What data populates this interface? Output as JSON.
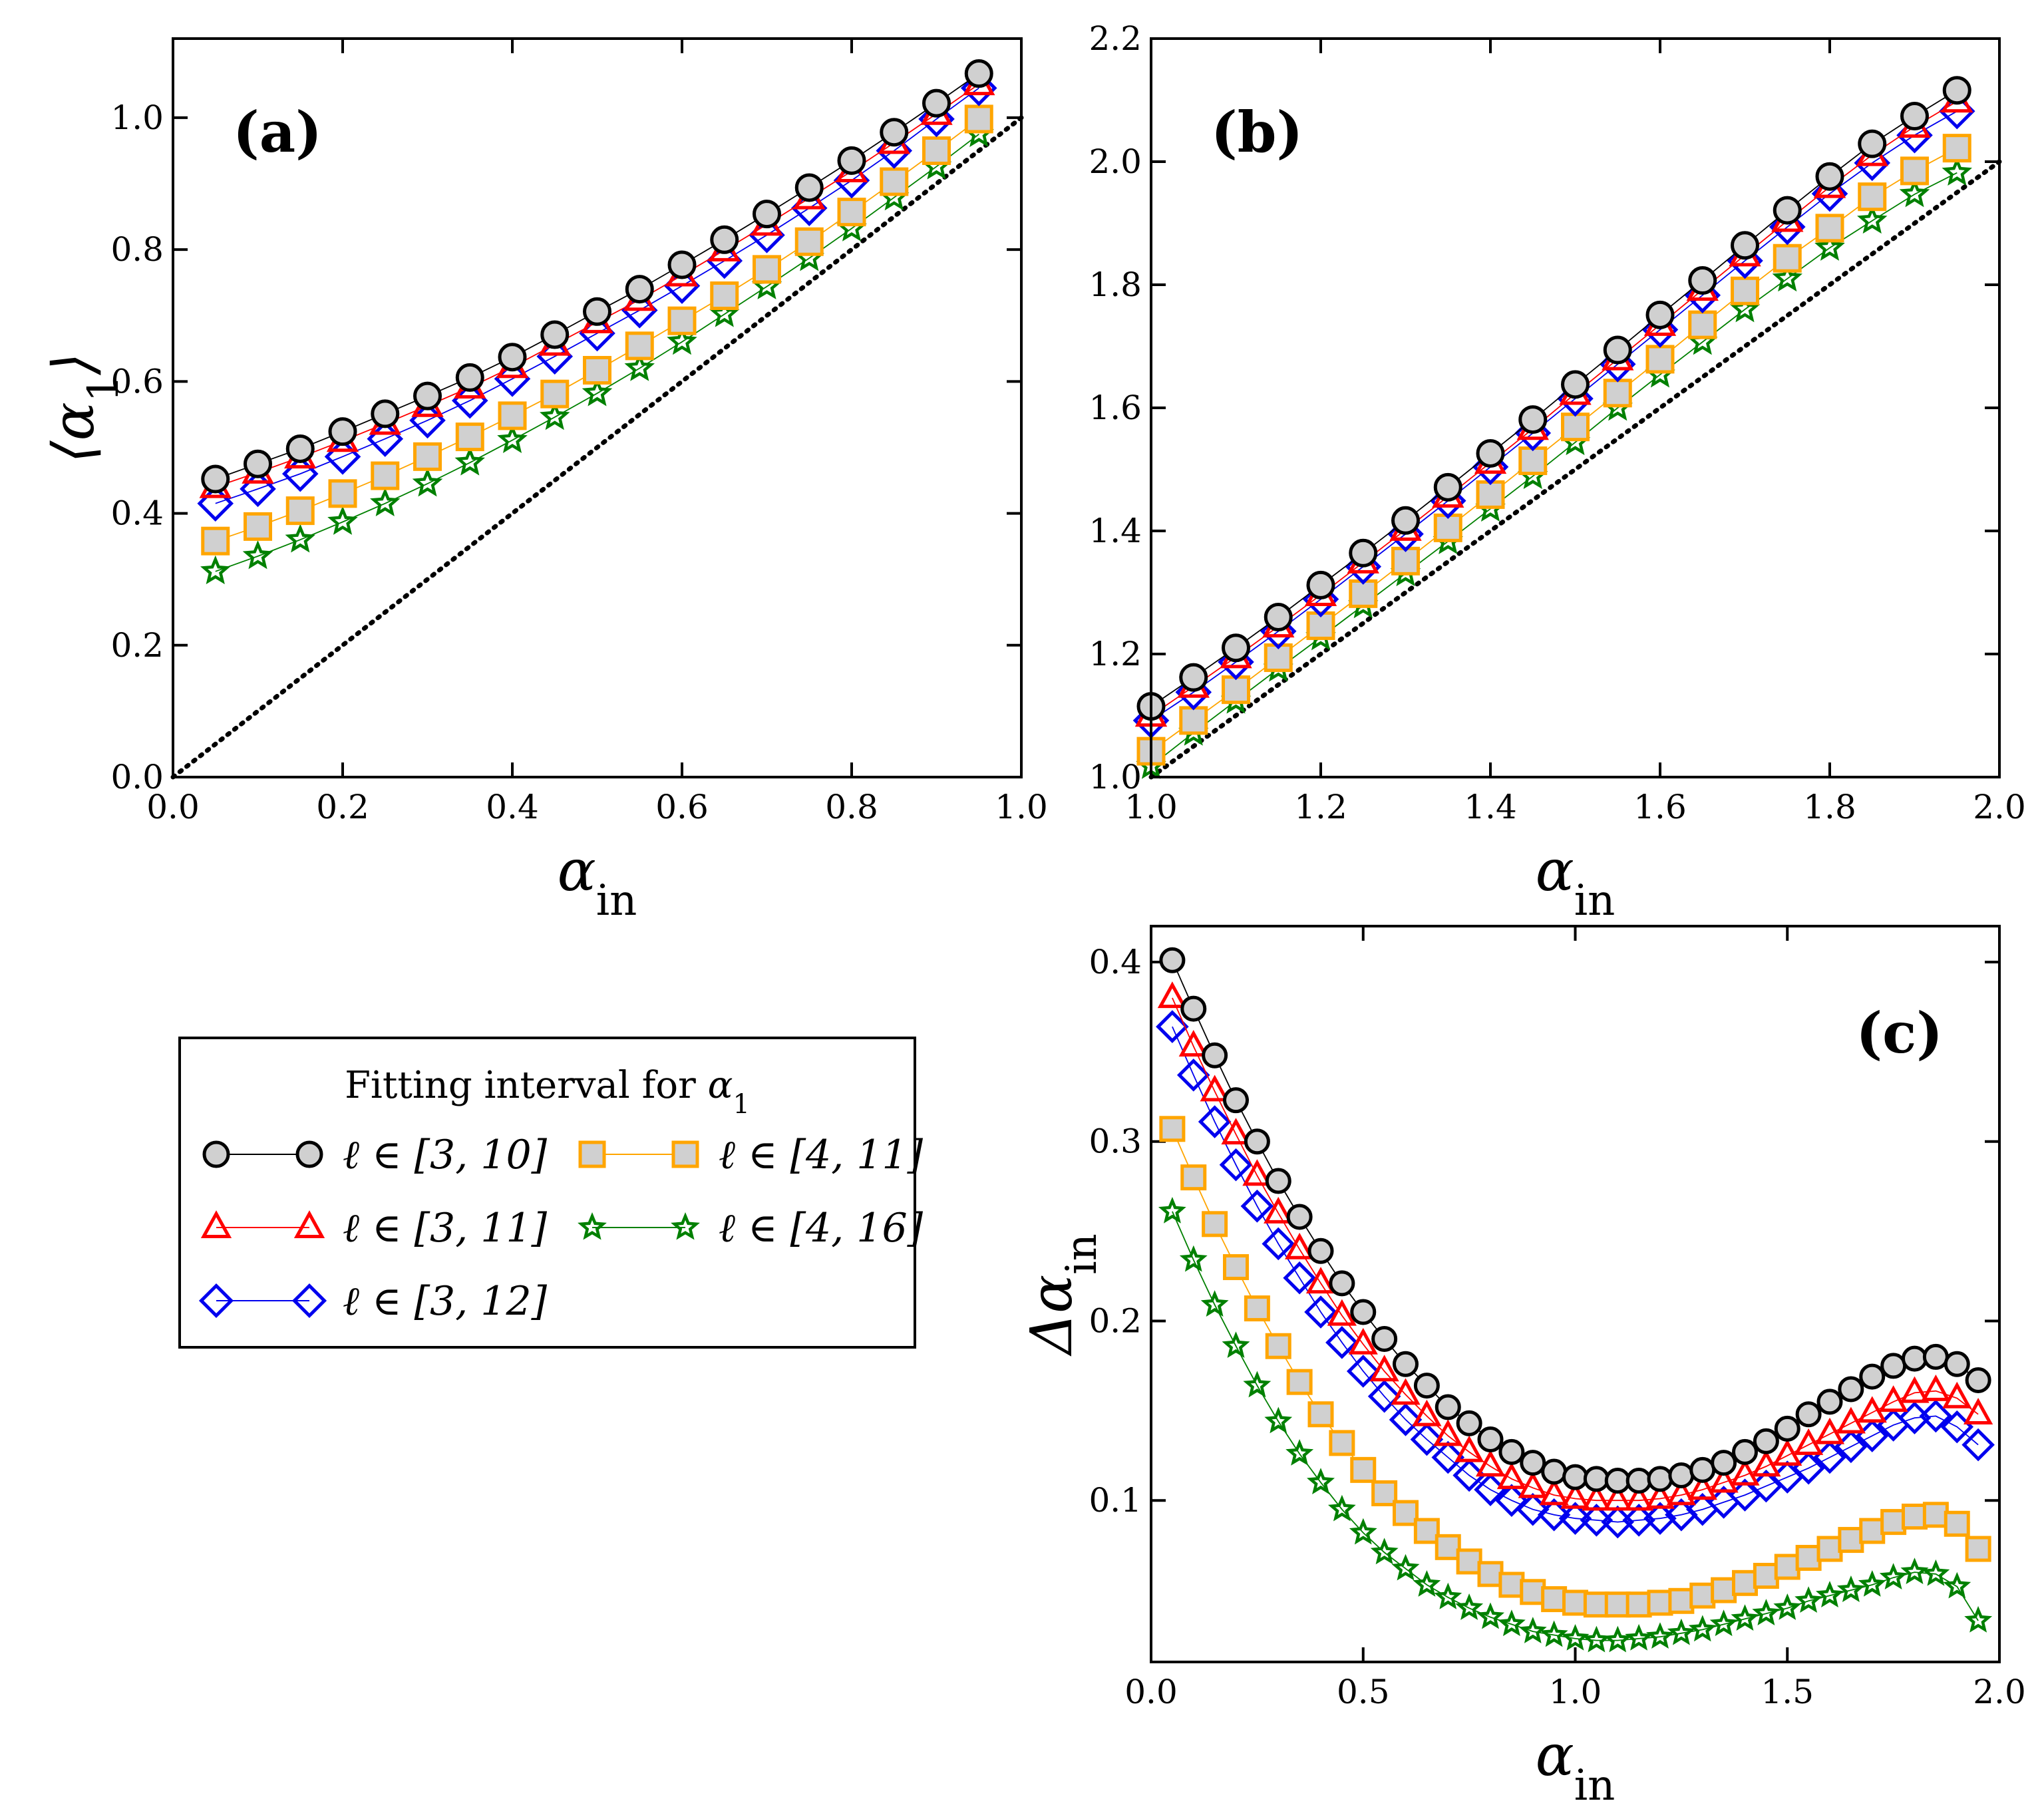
{
  "chart_data": [
    {
      "id": "a",
      "type": "line",
      "panel_label": "(a)",
      "xlabel": "α",
      "xlabel_sub": "in",
      "ylabel": "⟨α",
      "ylabel_sub": "1",
      "ylabel_tail": "⟩",
      "xlim": [
        0.0,
        1.0
      ],
      "ylim": [
        0.0,
        1.12
      ],
      "xticks": [
        "0.0",
        "0.2",
        "0.4",
        "0.6",
        "0.8",
        "1.0"
      ],
      "yticks": [
        "0.0",
        "0.2",
        "0.4",
        "0.6",
        "0.8",
        "1.0"
      ],
      "reference_line": {
        "style": "dotted",
        "x": [
          0.0,
          1.0
        ],
        "y": [
          0.0,
          1.0
        ]
      },
      "x": [
        0.05,
        0.1,
        0.15,
        0.2,
        0.25,
        0.3,
        0.35,
        0.4,
        0.45,
        0.5,
        0.55,
        0.6,
        0.65,
        0.7,
        0.75,
        0.8,
        0.85,
        0.9,
        0.95
      ],
      "series": [
        {
          "name": "ℓ ∈ [3, 10]",
          "values": [
            0.452,
            0.475,
            0.498,
            0.524,
            0.551,
            0.578,
            0.606,
            0.637,
            0.671,
            0.706,
            0.74,
            0.777,
            0.815,
            0.854,
            0.894,
            0.935,
            0.978,
            1.022,
            1.067
          ]
        },
        {
          "name": "ℓ ∈ [3, 11]",
          "values": [
            0.44,
            0.462,
            0.485,
            0.51,
            0.536,
            0.563,
            0.591,
            0.622,
            0.656,
            0.69,
            0.724,
            0.761,
            0.799,
            0.838,
            0.878,
            0.919,
            0.962,
            1.006,
            1.051
          ]
        },
        {
          "name": "ℓ ∈ [3, 12]",
          "values": [
            0.415,
            0.437,
            0.46,
            0.486,
            0.513,
            0.541,
            0.571,
            0.604,
            0.638,
            0.673,
            0.708,
            0.745,
            0.783,
            0.822,
            0.863,
            0.905,
            0.95,
            0.998,
            1.045
          ]
        },
        {
          "name": "ℓ ∈ [4, 11]",
          "values": [
            0.358,
            0.38,
            0.404,
            0.43,
            0.457,
            0.486,
            0.516,
            0.548,
            0.581,
            0.617,
            0.654,
            0.692,
            0.73,
            0.77,
            0.812,
            0.857,
            0.903,
            0.95,
            0.998
          ]
        },
        {
          "name": "ℓ ∈ [4, 16]",
          "values": [
            0.312,
            0.335,
            0.36,
            0.387,
            0.415,
            0.445,
            0.477,
            0.511,
            0.546,
            0.582,
            0.62,
            0.66,
            0.702,
            0.744,
            0.787,
            0.832,
            0.879,
            0.926,
            0.975
          ]
        }
      ]
    },
    {
      "id": "b",
      "type": "line",
      "panel_label": "(b)",
      "xlabel": "α",
      "xlabel_sub": "in",
      "xlim": [
        1.0,
        2.0
      ],
      "ylim": [
        1.0,
        2.2
      ],
      "xticks": [
        "1.0",
        "1.2",
        "1.4",
        "1.6",
        "1.8",
        "2.0"
      ],
      "yticks": [
        "1.0",
        "1.2",
        "1.4",
        "1.6",
        "1.8",
        "2.0",
        "2.2"
      ],
      "reference_line": {
        "style": "dotted",
        "x": [
          1.0,
          2.0
        ],
        "y": [
          1.0,
          2.0
        ]
      },
      "x": [
        1.0,
        1.05,
        1.1,
        1.15,
        1.2,
        1.25,
        1.3,
        1.35,
        1.4,
        1.45,
        1.5,
        1.55,
        1.6,
        1.65,
        1.7,
        1.75,
        1.8,
        1.85,
        1.9,
        1.95
      ],
      "series": [
        {
          "name": "ℓ ∈ [3, 10]",
          "values": [
            1.115,
            1.162,
            1.21,
            1.26,
            1.312,
            1.364,
            1.417,
            1.471,
            1.526,
            1.581,
            1.638,
            1.694,
            1.751,
            1.807,
            1.864,
            1.921,
            1.976,
            2.029,
            2.074,
            2.116
          ]
        },
        {
          "name": "ℓ ∈ [3, 11]",
          "values": [
            1.1,
            1.147,
            1.195,
            1.245,
            1.296,
            1.349,
            1.402,
            1.456,
            1.511,
            1.566,
            1.623,
            1.679,
            1.735,
            1.792,
            1.848,
            1.904,
            1.959,
            2.011,
            2.057,
            2.098
          ]
        },
        {
          "name": "ℓ ∈ [3, 12]",
          "values": [
            1.092,
            1.138,
            1.187,
            1.237,
            1.289,
            1.342,
            1.395,
            1.449,
            1.504,
            1.559,
            1.615,
            1.671,
            1.727,
            1.783,
            1.839,
            1.894,
            1.948,
            1.998,
            2.043,
            2.082
          ]
        },
        {
          "name": "ℓ ∈ [4, 11]",
          "values": [
            1.042,
            1.092,
            1.142,
            1.194,
            1.246,
            1.298,
            1.351,
            1.405,
            1.459,
            1.514,
            1.569,
            1.624,
            1.679,
            1.735,
            1.79,
            1.843,
            1.892,
            1.943,
            1.985,
            2.022
          ]
        },
        {
          "name": "ℓ ∈ [4, 16]",
          "values": [
            1.018,
            1.072,
            1.124,
            1.176,
            1.227,
            1.279,
            1.331,
            1.383,
            1.436,
            1.489,
            1.544,
            1.6,
            1.654,
            1.707,
            1.76,
            1.81,
            1.86,
            1.904,
            1.947,
            1.982
          ]
        }
      ]
    },
    {
      "id": "c",
      "type": "line",
      "panel_label": "(c)",
      "xlabel": "α",
      "xlabel_sub": "in",
      "ylabel": "Δα",
      "ylabel_sub": "in",
      "xlim": [
        0.0,
        2.0
      ],
      "ylim": [
        0.01,
        0.42
      ],
      "xticks": [
        "0.0",
        "0.5",
        "1.0",
        "1.5",
        "2.0"
      ],
      "yticks": [
        "0.1",
        "0.2",
        "0.3",
        "0.4"
      ],
      "x": [
        0.05,
        0.1,
        0.15,
        0.2,
        0.25,
        0.3,
        0.35,
        0.4,
        0.45,
        0.5,
        0.55,
        0.6,
        0.65,
        0.7,
        0.75,
        0.8,
        0.85,
        0.9,
        0.95,
        1.0,
        1.05,
        1.1,
        1.15,
        1.2,
        1.25,
        1.3,
        1.35,
        1.4,
        1.45,
        1.5,
        1.55,
        1.6,
        1.65,
        1.7,
        1.75,
        1.8,
        1.85,
        1.9,
        1.95
      ],
      "series": [
        {
          "name": "ℓ ∈ [3, 10]",
          "values": [
            0.401,
            0.374,
            0.348,
            0.323,
            0.3,
            0.278,
            0.258,
            0.239,
            0.221,
            0.205,
            0.19,
            0.176,
            0.164,
            0.152,
            0.143,
            0.134,
            0.127,
            0.121,
            0.116,
            0.113,
            0.112,
            0.111,
            0.111,
            0.112,
            0.114,
            0.117,
            0.121,
            0.127,
            0.133,
            0.14,
            0.148,
            0.155,
            0.162,
            0.169,
            0.175,
            0.179,
            0.18,
            0.176,
            0.167
          ]
        },
        {
          "name": "ℓ ∈ [3, 11]",
          "values": [
            0.38,
            0.353,
            0.328,
            0.304,
            0.281,
            0.26,
            0.24,
            0.221,
            0.203,
            0.187,
            0.172,
            0.159,
            0.147,
            0.136,
            0.127,
            0.119,
            0.112,
            0.107,
            0.103,
            0.101,
            0.1,
            0.1,
            0.1,
            0.101,
            0.103,
            0.106,
            0.11,
            0.114,
            0.119,
            0.125,
            0.131,
            0.137,
            0.143,
            0.149,
            0.155,
            0.16,
            0.161,
            0.157,
            0.148
          ]
        },
        {
          "name": "ℓ ∈ [3, 12]",
          "values": [
            0.364,
            0.337,
            0.311,
            0.287,
            0.264,
            0.243,
            0.224,
            0.205,
            0.188,
            0.172,
            0.158,
            0.145,
            0.134,
            0.124,
            0.114,
            0.106,
            0.1,
            0.095,
            0.092,
            0.09,
            0.089,
            0.088,
            0.089,
            0.09,
            0.092,
            0.095,
            0.099,
            0.103,
            0.108,
            0.113,
            0.118,
            0.124,
            0.13,
            0.136,
            0.142,
            0.146,
            0.147,
            0.141,
            0.131
          ]
        },
        {
          "name": "ℓ ∈ [4, 11]",
          "values": [
            0.307,
            0.28,
            0.254,
            0.23,
            0.207,
            0.186,
            0.166,
            0.148,
            0.132,
            0.117,
            0.104,
            0.093,
            0.083,
            0.074,
            0.066,
            0.059,
            0.053,
            0.049,
            0.045,
            0.043,
            0.042,
            0.042,
            0.042,
            0.043,
            0.044,
            0.047,
            0.05,
            0.054,
            0.058,
            0.063,
            0.068,
            0.073,
            0.078,
            0.083,
            0.088,
            0.091,
            0.092,
            0.087,
            0.073
          ]
        },
        {
          "name": "ℓ ∈ [4, 16]",
          "values": [
            0.261,
            0.234,
            0.209,
            0.186,
            0.164,
            0.144,
            0.126,
            0.11,
            0.095,
            0.082,
            0.071,
            0.062,
            0.053,
            0.046,
            0.04,
            0.035,
            0.031,
            0.027,
            0.025,
            0.023,
            0.022,
            0.022,
            0.023,
            0.024,
            0.026,
            0.028,
            0.031,
            0.034,
            0.037,
            0.04,
            0.044,
            0.047,
            0.05,
            0.053,
            0.057,
            0.06,
            0.059,
            0.052,
            0.033
          ]
        }
      ]
    }
  ],
  "legend": {
    "title_prefix": "Fitting interval for ",
    "title_symbol": "α",
    "title_sub": "1",
    "entries": [
      {
        "label": "ℓ ∈ [3, 10]",
        "marker": "circle"
      },
      {
        "label": "ℓ ∈ [3, 11]",
        "marker": "triangle"
      },
      {
        "label": "ℓ ∈ [3, 12]",
        "marker": "diamond"
      },
      {
        "label": "ℓ ∈ [4, 11]",
        "marker": "square"
      },
      {
        "label": "ℓ ∈ [4, 16]",
        "marker": "star"
      }
    ]
  },
  "styles": [
    {
      "marker": "circle",
      "face": "#d0d0d0",
      "edge": "#000000",
      "line": "#000000"
    },
    {
      "marker": "triangle",
      "face": "none",
      "edge": "#ff0000",
      "line": "#ff0000"
    },
    {
      "marker": "diamond",
      "face": "none",
      "edge": "#0000ee",
      "line": "#0000ee"
    },
    {
      "marker": "square",
      "face": "#d0d0d0",
      "edge": "#ffa500",
      "line": "#ffa500"
    },
    {
      "marker": "star",
      "face": "none",
      "edge": "#008000",
      "line": "#008000"
    }
  ]
}
